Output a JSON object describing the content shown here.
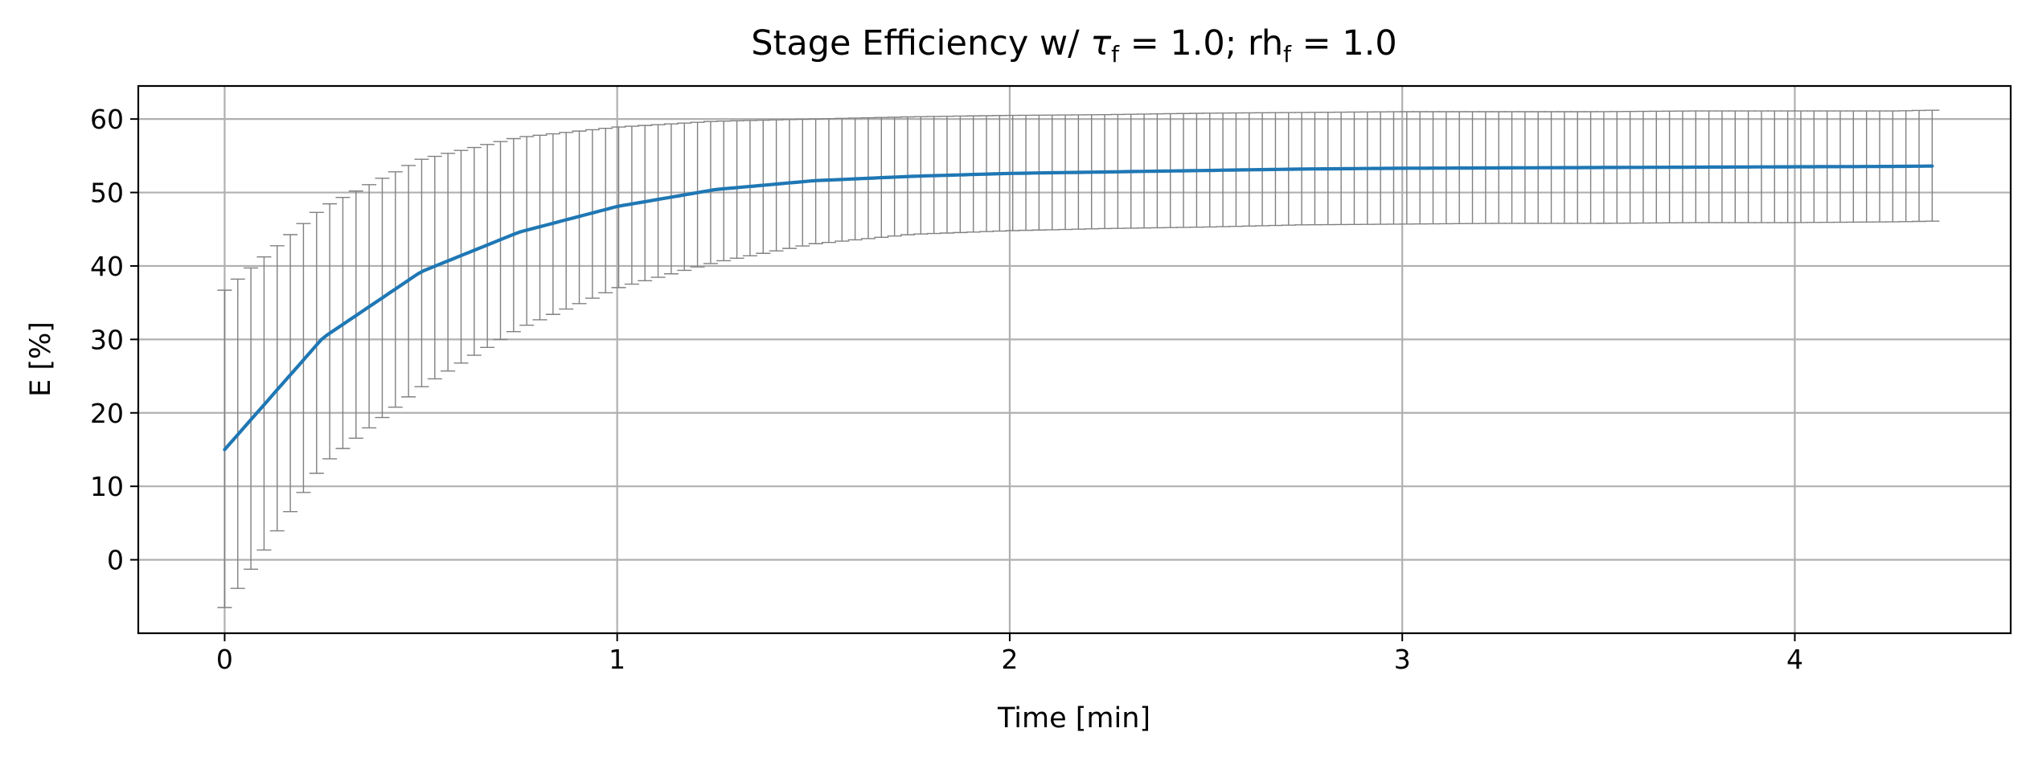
{
  "chart_data": {
    "type": "line",
    "title": "Stage Efficiency w/ τ_f = 1.0; rh_f = 1.0",
    "title_parts": {
      "prefix": "Stage Efficiency w/ ",
      "sym1": "τ",
      "sub1": "f",
      "mid": " = 1.0; rh",
      "sub2": "f",
      "suffix": " = 1.0"
    },
    "xlabel": "Time [min]",
    "ylabel": "E [%]",
    "xlim": [
      -0.22,
      4.55
    ],
    "ylim": [
      -10,
      64.5
    ],
    "xticks": [
      0,
      1,
      2,
      3,
      4
    ],
    "xtick_labels": [
      "0",
      "1",
      "2",
      "3",
      "4"
    ],
    "yticks": [
      0,
      10,
      20,
      30,
      40,
      50,
      60
    ],
    "ytick_labels": [
      "0",
      "10",
      "20",
      "30",
      "40",
      "50",
      "60"
    ],
    "grid": true,
    "colors": {
      "line": "#1f77b4",
      "errorbar": "#808080",
      "grid": "#b0b0b0",
      "axes": "#000000"
    },
    "series": [
      {
        "x": [
          0.0,
          0.25,
          0.5,
          0.75,
          1.0,
          1.25,
          1.5,
          1.75,
          2.0,
          2.25,
          2.5,
          2.75,
          3.0,
          3.25,
          3.5,
          3.75,
          4.0,
          4.25,
          4.35
        ],
        "y": [
          15.0,
          30.2,
          39.2,
          44.6,
          48.1,
          50.4,
          51.6,
          52.2,
          52.6,
          52.8,
          53.0,
          53.2,
          53.3,
          53.35,
          53.4,
          53.45,
          53.5,
          53.55,
          53.6
        ],
        "error_lower_x": [
          0.0,
          0.25,
          0.5,
          0.75,
          1.0,
          1.25,
          1.5,
          1.75,
          2.0,
          2.25,
          2.5,
          2.75,
          3.0,
          3.25,
          3.5,
          3.75,
          4.0,
          4.25,
          4.35
        ],
        "error_lower": [
          -6.5,
          13.0,
          23.5,
          31.5,
          37.0,
          40.5,
          43.0,
          44.3,
          44.8,
          45.1,
          45.3,
          45.6,
          45.7,
          45.8,
          45.8,
          45.9,
          45.9,
          46.0,
          46.1
        ],
        "error_upper": [
          36.7,
          48.0,
          54.5,
          57.5,
          58.9,
          59.7,
          60.0,
          60.3,
          60.5,
          60.6,
          60.8,
          60.9,
          61.0,
          61.0,
          61.0,
          61.1,
          61.1,
          61.1,
          61.2
        ],
        "errorbar_count": 131
      }
    ]
  }
}
